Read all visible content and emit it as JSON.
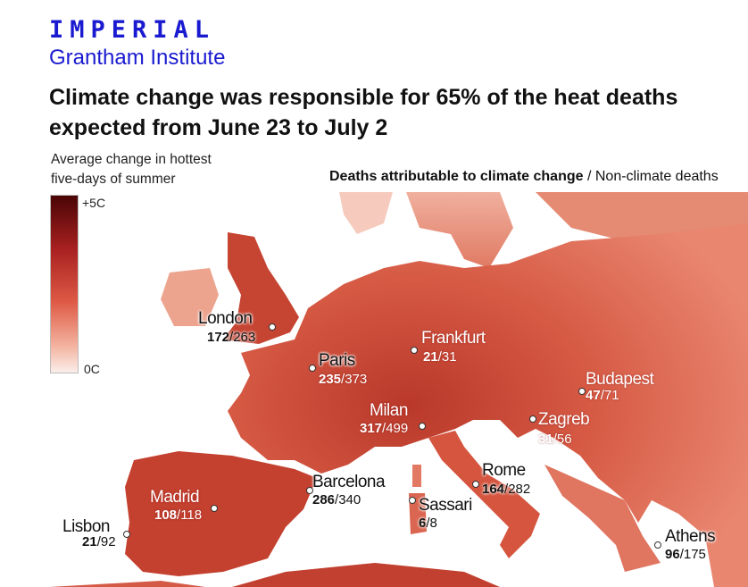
{
  "brand": {
    "name": "IMPERIAL",
    "sub": "Grantham Institute"
  },
  "title": "Climate change was responsible for 65% of the heat deaths expected from June 23 to July 2",
  "legend": {
    "title_line1": "Average change in hottest",
    "title_line2": "five-days of summer",
    "max": "+5C",
    "min": "0C",
    "colors": [
      "#4a0505",
      "#a82020",
      "#de5a45",
      "#f3b3a0",
      "#fbeeea"
    ]
  },
  "deaths_header": {
    "bold": "Deaths attributable to climate change",
    "sep": " / ",
    "rest": "Non-climate deaths"
  },
  "cities": [
    {
      "name": "London",
      "climate": "172",
      "total": "/263"
    },
    {
      "name": "Paris",
      "climate": "235",
      "total": "/373"
    },
    {
      "name": "Frankfurt",
      "climate": "21",
      "total": "/31"
    },
    {
      "name": "Budapest",
      "climate": "47",
      "total": "/71"
    },
    {
      "name": "Milan",
      "climate": "317",
      "total": "/499"
    },
    {
      "name": "Zagreb",
      "climate": "31",
      "total": "/56"
    },
    {
      "name": "Barcelona",
      "climate": "286",
      "total": "/340"
    },
    {
      "name": "Rome",
      "climate": "164",
      "total": "/282"
    },
    {
      "name": "Sassari",
      "climate": "6",
      "total": "/8"
    },
    {
      "name": "Madrid",
      "climate": "108",
      "total": "/118"
    },
    {
      "name": "Lisbon",
      "climate": "21",
      "total": "/92"
    },
    {
      "name": "Athens",
      "climate": "96",
      "total": "/175"
    }
  ]
}
